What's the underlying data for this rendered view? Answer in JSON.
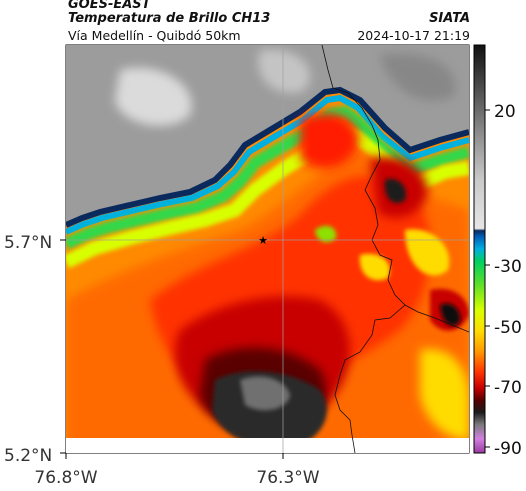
{
  "header": {
    "satellite": "GOES-EAST",
    "product": "Temperatura de Brillo CH13",
    "subtitle": "Vía Medellín - Quibdó 50km",
    "organization": "SIATA",
    "datetime": "2024-10-17 21:19"
  },
  "map": {
    "lat_labels": [
      "5.7°N",
      "5.2°N"
    ],
    "lon_labels": [
      "76.8°W",
      "76.3°W"
    ],
    "marker": "star-marker",
    "legend_ticks": [
      "20",
      "-30",
      "-50",
      "-70",
      "-90"
    ],
    "legend_colors": [
      "#111111",
      "#4a4a4a",
      "#8e8e8e",
      "#c9c9c9",
      "#e6e6e6",
      "#0a2a5e",
      "#005fb8",
      "#00b0e0",
      "#00d060",
      "#62e026",
      "#d8ff00",
      "#ffdc00",
      "#ff9a00",
      "#ff3800",
      "#c80000",
      "#5a0000",
      "#1b1b1b",
      "#7a7a7a",
      "#d080e0",
      "#9a3aa0"
    ]
  }
}
